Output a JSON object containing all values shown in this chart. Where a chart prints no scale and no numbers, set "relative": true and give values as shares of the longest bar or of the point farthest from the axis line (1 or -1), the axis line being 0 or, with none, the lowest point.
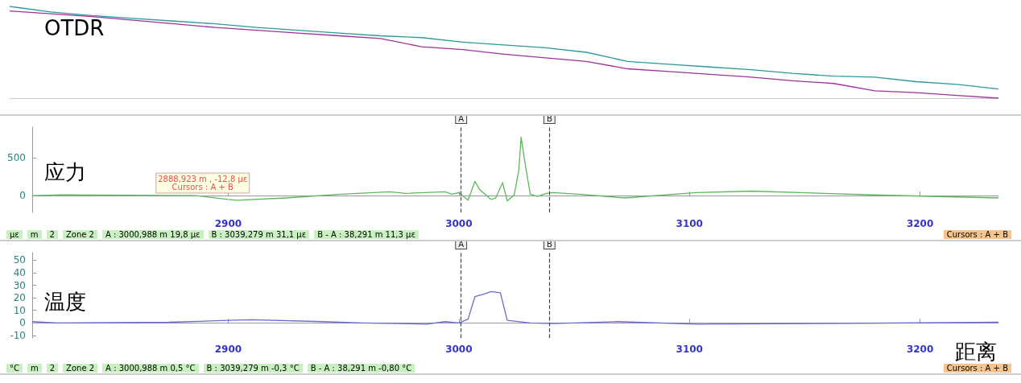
{
  "chart_data": [
    {
      "type": "line",
      "title": "OTDR",
      "relative": true,
      "grid": false,
      "marker": "none",
      "categories": [
        null,
        null,
        null,
        null,
        null,
        null,
        null,
        null,
        null,
        null,
        null,
        null,
        null,
        null,
        null,
        null,
        null,
        null,
        null,
        null,
        null,
        null,
        null,
        null,
        null
      ],
      "series": [
        {
          "color": "#2a9a9a",
          "values": [
            1,
            0.94,
            0.9,
            0.87,
            0.84,
            0.81,
            0.77,
            0.74,
            0.71,
            0.68,
            0.66,
            0.61,
            0.58,
            0.55,
            0.5,
            0.4,
            0.37,
            0.34,
            0.31,
            0.27,
            0.24,
            0.23,
            0.18,
            0.15,
            0.1
          ]
        },
        {
          "color": "#a0309a",
          "values": [
            0.95,
            0.92,
            0.89,
            0.85,
            0.81,
            0.77,
            0.74,
            0.71,
            0.68,
            0.65,
            0.56,
            0.53,
            0.48,
            0.44,
            0.4,
            0.32,
            0.29,
            0.26,
            0.23,
            0.19,
            0.16,
            0.08,
            0.06,
            0.03,
            0
          ]
        }
      ]
    },
    {
      "type": "line",
      "ylabel": "应力",
      "grid": false,
      "marker": "none",
      "xlim": [
        2815,
        3234
      ],
      "xticks": [
        2900,
        3000,
        3100,
        3200
      ],
      "ylim": [
        -220,
        900
      ],
      "yticks": [
        0,
        500
      ],
      "series": [
        {
          "color": "#5cb85c",
          "x": [
            2815,
            2828,
            2886,
            2900,
            2904,
            2925,
            2949,
            2970,
            2977,
            2994,
            2997,
            3000,
            3004,
            3007,
            3009,
            3014,
            3016,
            3019,
            3021,
            3024,
            3026,
            3027,
            3029,
            3031,
            3034,
            3038,
            3041,
            3052,
            3072,
            3103,
            3127,
            3179,
            3234
          ],
          "values": [
            0,
            10,
            0,
            -50,
            -60,
            -30,
            20,
            50,
            30,
            50,
            20,
            40,
            -60,
            190,
            80,
            -50,
            -30,
            170,
            -70,
            10,
            330,
            770,
            370,
            20,
            -10,
            30,
            40,
            20,
            -30,
            40,
            60,
            10,
            -30
          ]
        }
      ],
      "ref_lines": [
        {
          "axis": "x",
          "value": 3000.988,
          "label": "A",
          "line_style": "dashed"
        },
        {
          "axis": "x",
          "value": 3039.279,
          "label": "B",
          "line_style": "dashed"
        }
      ],
      "annotations": [
        "με",
        "m",
        "2",
        "Zone 2",
        {
          "text": "2888,923 m , -12,8 με\nCursors : A + B",
          "x": 2888.923,
          "y": -12.8
        },
        "A : 3000,988 m  19,8 με",
        "B : 3039,279 m  31,1 με",
        "B - A : 38,291 m  11,3 με",
        "Cursors : A + B"
      ]
    },
    {
      "type": "line",
      "ylabel": "温度",
      "xlabel": "距离",
      "grid": false,
      "marker": "none",
      "xlim": [
        2815,
        3234
      ],
      "xticks": [
        2900,
        3000,
        3100,
        3200
      ],
      "ylim": [
        -12,
        56
      ],
      "yticks": [
        -10,
        0,
        10,
        20,
        30,
        40,
        50
      ],
      "series": [
        {
          "color": "#6a6ad0",
          "x": [
            2815,
            2826,
            2874,
            2900,
            2910,
            2941,
            2958,
            2986,
            2994,
            3000,
            3004,
            3007,
            3011,
            3014,
            3018,
            3021,
            3031,
            3041,
            3069,
            3103,
            3155,
            3234
          ],
          "values": [
            1,
            0,
            0.5,
            2,
            2.5,
            1,
            0,
            -1,
            1,
            0,
            3,
            21,
            23,
            25,
            24,
            2,
            0,
            -0.5,
            1,
            -1,
            -0.5,
            0.5
          ]
        }
      ],
      "ref_lines": [
        {
          "axis": "x",
          "value": 3000.988,
          "label": "A",
          "line_style": "dashed"
        },
        {
          "axis": "x",
          "value": 3039.279,
          "label": "B",
          "line_style": "dashed"
        }
      ],
      "annotations": [
        "°C",
        "m",
        "2",
        "Zone 2",
        "A : 3000,988 m  0,5 °C",
        "B : 3039,279 m  -0,3 °C",
        "B - A : 38,291 m  -0,80 °C",
        "Cursors : A + B"
      ]
    }
  ]
}
